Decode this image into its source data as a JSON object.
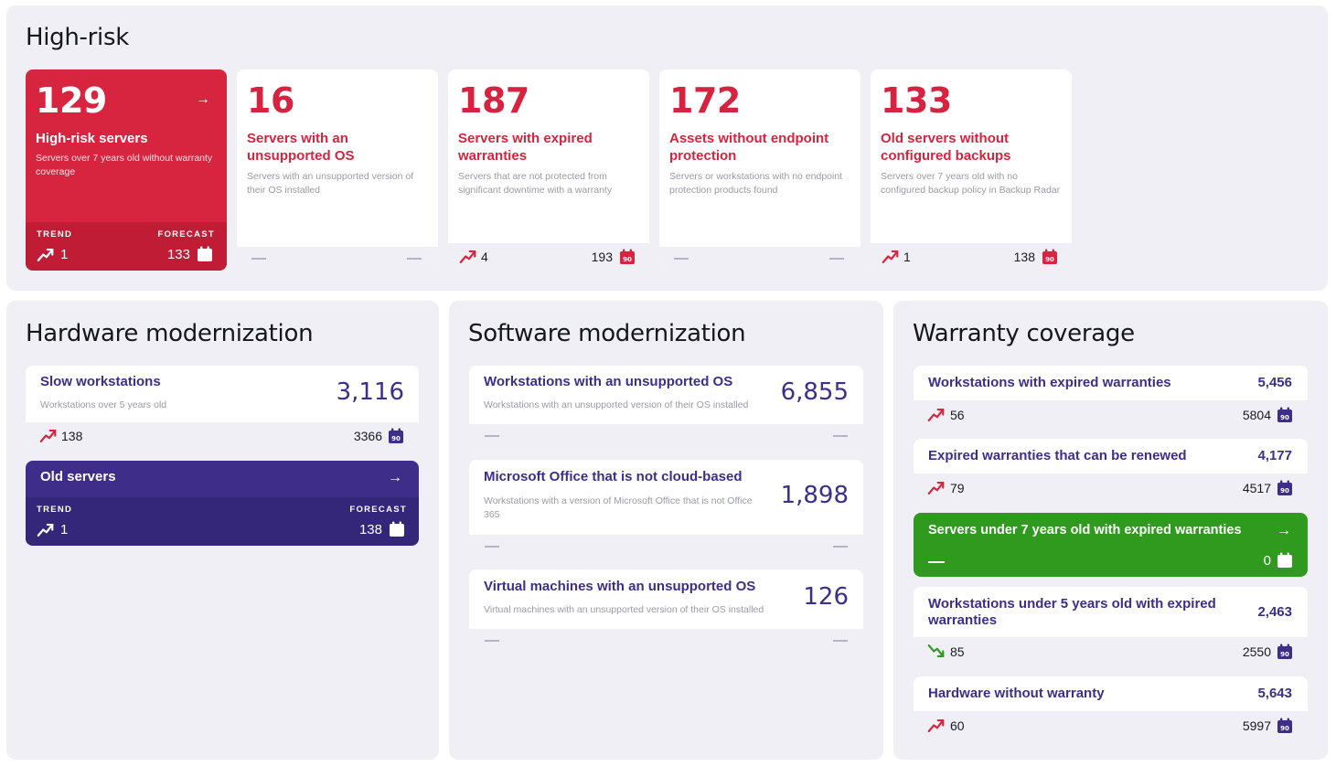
{
  "colors": {
    "red": "#d7243f",
    "purple": "#3e2e8a",
    "green": "#2f9a1e",
    "panel": "#f0eff5"
  },
  "high_risk": {
    "title": "High-risk",
    "featured": {
      "value": "129",
      "title": "High-risk servers",
      "description": "Servers over 7 years old without warranty coverage",
      "trend_label": "TREND",
      "forecast_label": "FORECAST",
      "trend_value": "1",
      "forecast_value": "133"
    },
    "cards": [
      {
        "value": "16",
        "title": "Servers with an unsupported OS",
        "description": "Servers with an unsupported version of their OS installed",
        "trend_value": "",
        "forecast_value": ""
      },
      {
        "value": "187",
        "title": "Servers with expired warranties",
        "description": "Servers that are not protected from significant downtime with a warranty",
        "trend_value": "4",
        "forecast_value": "193"
      },
      {
        "value": "172",
        "title": "Assets without endpoint protection",
        "description": "Servers or workstations with no endpoint protection products found",
        "trend_value": "",
        "forecast_value": ""
      },
      {
        "value": "133",
        "title": "Old servers without configured backups",
        "description": "Servers over 7 years old with no configured backup policy in Backup Radar",
        "trend_value": "1",
        "forecast_value": "138"
      }
    ]
  },
  "hardware": {
    "title": "Hardware modernization",
    "slow": {
      "title": "Slow workstations",
      "description": "Workstations over 5 years old",
      "value": "3,116",
      "trend_value": "138",
      "forecast_value": "3366"
    },
    "old_servers": {
      "title": "Old servers",
      "trend_label": "TREND",
      "forecast_label": "FORECAST",
      "trend_value": "1",
      "forecast_value": "138"
    }
  },
  "software": {
    "title": "Software modernization",
    "items": [
      {
        "title": "Workstations with an unsupported OS",
        "description": "Workstations with an unsupported version of their OS installed",
        "value": "6,855"
      },
      {
        "title": "Microsoft Office that is not cloud-based",
        "description": "Workstations with a version of Microsoft Office that is not Office 365",
        "value": "1,898"
      },
      {
        "title": "Virtual machines with an unsupported OS",
        "description": "Virtual machines with an unsupported version of their OS installed",
        "value": "126"
      }
    ]
  },
  "warranty": {
    "title": "Warranty coverage",
    "items": [
      {
        "title": "Workstations with expired warranties",
        "value": "5,456",
        "trend_value": "56",
        "forecast_value": "5804"
      },
      {
        "title": "Expired warranties that can be renewed",
        "value": "4,177",
        "trend_value": "79",
        "forecast_value": "4517"
      },
      {
        "title": "Servers under 7 years old with expired warranties",
        "forecast_value": "0"
      },
      {
        "title": "Workstations under 5 years old with expired warranties",
        "value": "2,463",
        "trend_value": "85",
        "forecast_value": "2550"
      },
      {
        "title": "Hardware without warranty",
        "value": "5,643",
        "trend_value": "60",
        "forecast_value": "5997"
      }
    ]
  }
}
